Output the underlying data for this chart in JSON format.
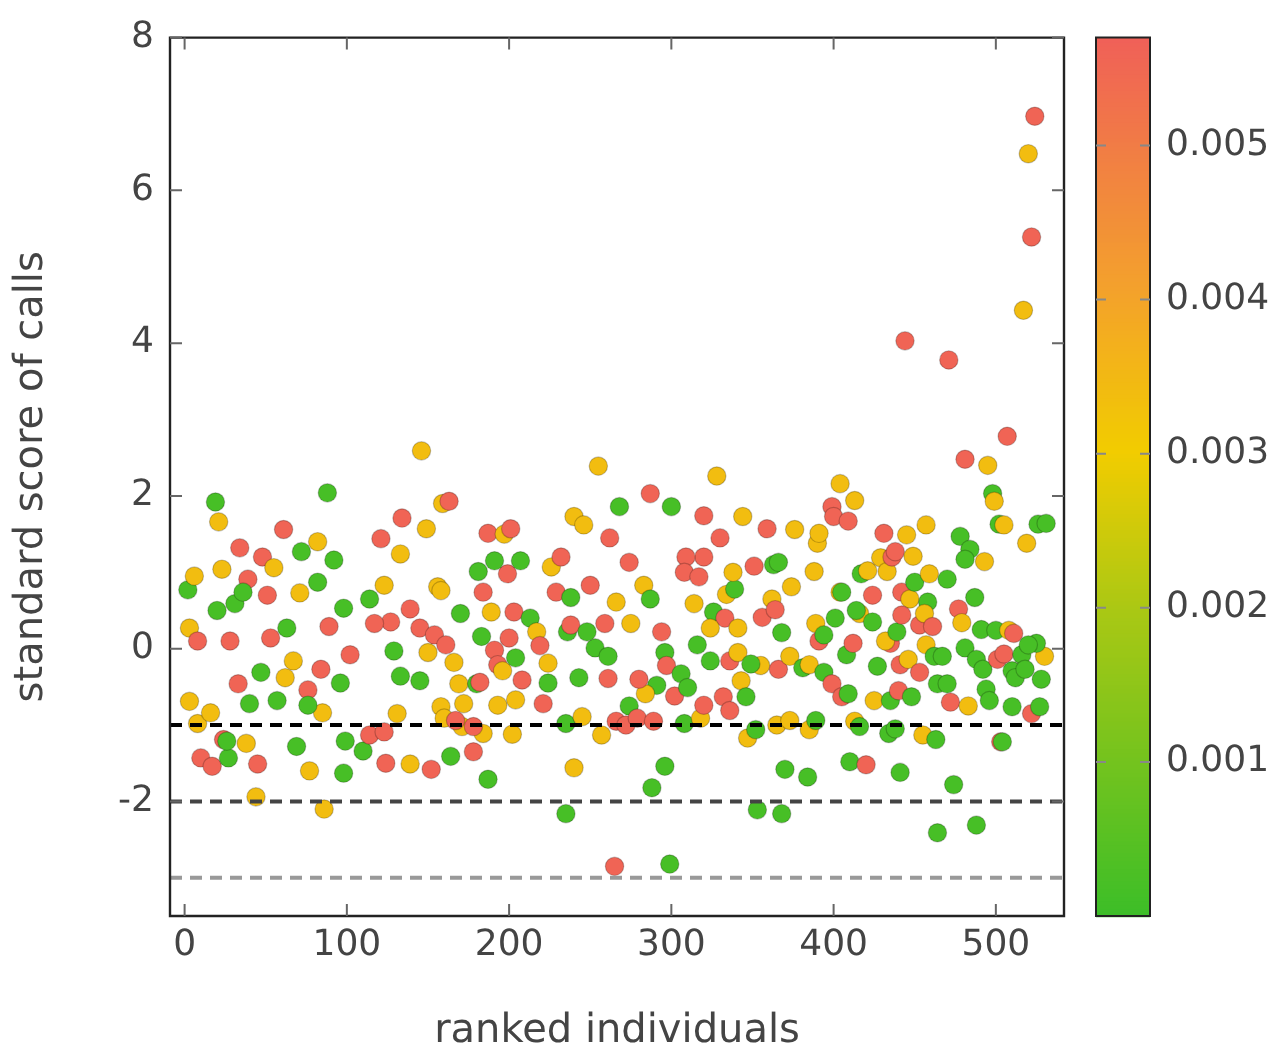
{
  "chart_data": {
    "type": "scatter",
    "xlabel": "ranked individuals",
    "ylabel": "standard score of calls",
    "xlim": [
      -9,
      542
    ],
    "ylim": [
      -3.5,
      8
    ],
    "xticks": [
      0,
      100,
      200,
      300,
      400,
      500
    ],
    "yticks": [
      -2,
      0,
      2,
      4,
      6,
      8
    ],
    "clim": [
      0,
      0.0057
    ],
    "cticks": [
      0.001,
      0.002,
      0.003,
      0.004,
      0.005
    ],
    "marker": "circle",
    "ref_lines": [
      {
        "axis": "y",
        "value": -1,
        "color": "#000000",
        "line_style": "dashed"
      },
      {
        "axis": "y",
        "value": -2,
        "color": "#444444",
        "line_style": "dashed"
      },
      {
        "axis": "y",
        "value": -3,
        "color": "#999999",
        "line_style": "dashed"
      }
    ],
    "x": [
      2,
      19,
      21,
      6,
      3,
      8,
      3,
      8,
      10,
      17,
      24,
      27,
      26,
      16,
      34,
      23,
      48,
      61,
      55,
      39,
      31,
      36,
      20,
      28,
      38,
      44,
      45,
      33,
      40,
      47,
      53,
      51,
      63,
      72,
      82,
      92,
      88,
      82,
      71,
      69,
      77,
      86,
      85,
      76,
      76,
      96,
      84,
      57,
      62,
      67,
      89,
      98,
      102,
      99,
      98,
      110,
      114,
      123,
      124,
      131,
      129,
      133,
      145,
      139,
      152,
      146,
      121,
      134,
      133,
      149,
      159,
      163,
      156,
      158,
      127,
      117,
      114,
      123,
      139,
      145,
      154,
      161,
      150,
      166,
      169,
      172,
      158,
      160,
      171,
      167,
      164,
      178,
      187,
      184,
      178,
      180,
      182,
      170,
      181,
      187,
      184,
      189,
      183,
      191,
      193,
      196,
      193,
      202,
      204,
      208,
      204,
      200,
      199,
      197,
      201,
      191,
      207,
      203,
      213,
      217,
      221,
      224,
      224,
      219,
      226,
      232,
      229,
      238,
      236,
      238,
      235,
      240,
      235,
      240,
      246,
      245,
      243,
      253,
      248,
      250,
      255,
      268,
      262,
      266,
      259,
      261,
      261,
      257,
      266,
      265,
      274,
      275,
      274,
      272,
      299,
      296,
      288,
      287,
      300,
      283,
      287,
      294,
      296,
      297,
      302,
      291,
      284,
      280,
      279,
      289,
      308,
      306,
      310,
      318,
      316,
      324,
      320,
      314,
      320,
      309,
      308,
      317,
      320,
      328,
      330,
      326,
      333,
      324,
      334,
      339,
      338,
      344,
      341,
      336,
      341,
      343,
      346,
      332,
      336,
      347,
      352,
      353,
      355,
      349,
      356,
      351,
      359,
      362,
      364,
      363,
      366,
      368,
      366,
      373,
      370,
      368,
      365,
      373,
      374,
      376,
      381,
      385,
      390,
      391,
      388,
      389,
      391,
      394,
      385,
      389,
      384,
      394,
      399,
      405,
      409,
      399,
      400,
      404,
      409,
      413,
      401,
      404,
      405,
      408,
      412,
      413,
      410,
      420,
      416,
      416,
      414,
      417,
      421,
      424,
      424,
      427,
      425,
      431,
      429,
      433,
      436,
      438,
      435,
      432,
      439,
      435,
      441,
      440,
      434,
      438,
      441,
      444,
      442,
      447,
      445,
      449,
      450,
      442,
      446,
      448,
      453,
      453,
      458,
      457,
      459,
      456,
      461,
      457,
      462,
      467,
      464,
      470,
      472,
      455,
      463,
      464,
      474,
      471,
      481,
      478,
      484,
      481,
      487,
      470,
      477,
      479,
      481,
      488,
      492,
      494,
      496,
      483,
      488,
      493,
      491,
      495,
      498,
      499,
      502,
      505,
      500,
      501,
      505,
      508,
      511,
      503,
      504,
      507,
      510,
      510,
      512,
      517,
      520,
      522,
      524,
      519,
      516,
      518,
      522,
      527,
      528,
      530,
      525,
      526,
      531,
      520
    ],
    "values": [
      0.77,
      1.92,
      1.66,
      0.95,
      0.27,
      0.1,
      -0.69,
      -0.98,
      -1.43,
      -1.54,
      -1.19,
      -1.43,
      -1.21,
      -0.84,
      1.32,
      1.04,
      1.2,
      1.56,
      1.06,
      0.91,
      0.59,
      0.74,
      0.5,
      0.1,
      -1.24,
      -1.94,
      -1.51,
      -0.46,
      -0.72,
      -0.31,
      0.14,
      0.7,
      0.27,
      1.27,
      1.4,
      1.16,
      2.04,
      0.87,
      0.73,
      -1.28,
      -1.6,
      -2.1,
      -0.84,
      -0.54,
      -0.74,
      -0.45,
      -0.27,
      -0.68,
      -0.38,
      -0.16,
      0.29,
      0.53,
      -0.08,
      -1.21,
      -1.63,
      -1.34,
      -1.13,
      -1.09,
      -1.5,
      -0.85,
      -0.03,
      -0.36,
      -0.42,
      -1.51,
      -1.58,
      2.59,
      1.44,
      1.71,
      1.24,
      1.57,
      1.9,
      1.93,
      0.81,
      0.76,
      0.35,
      0.33,
      0.65,
      0.83,
      0.52,
      0.27,
      0.18,
      0.05,
      -0.05,
      -0.18,
      -0.46,
      -0.72,
      -0.76,
      -0.91,
      -1.02,
      -0.94,
      -1.41,
      -1.35,
      -1.71,
      -1.11,
      -1.02,
      -0.46,
      -0.44,
      0.46,
      1.01,
      1.51,
      0.74,
      0.48,
      0.16,
      -0.02,
      -0.21,
      -0.29,
      -0.74,
      -1.12,
      -0.67,
      -0.41,
      -0.12,
      0.14,
      0.98,
      1.5,
      1.57,
      1.15,
      1.15,
      0.48,
      0.4,
      0.22,
      -0.72,
      -0.45,
      -0.19,
      0.04,
      1.07,
      1.2,
      0.74,
      0.67,
      0.22,
      0.31,
      -0.98,
      -1.56,
      -2.16,
      1.73,
      1.62,
      -0.89,
      -0.38,
      0.01,
      0.22,
      0.83,
      2.39,
      1.86,
      1.45,
      0.61,
      0.33,
      -0.1,
      -0.39,
      -1.13,
      -0.95,
      -2.85,
      1.13,
      0.33,
      -0.75,
      -1.0,
      -2.82,
      -1.54,
      -1.82,
      2.03,
      1.86,
      0.83,
      0.65,
      0.22,
      -0.05,
      -0.22,
      -0.62,
      -0.48,
      -0.59,
      -0.4,
      -0.91,
      -0.95,
      -0.98,
      -0.33,
      -0.51,
      -0.91,
      0.05,
      -0.16,
      -0.74,
      0.59,
      1.2,
      1.2,
      1.0,
      0.94,
      1.74,
      2.26,
      1.45,
      0.48,
      0.4,
      0.27,
      0.71,
      0.78,
      1.0,
      1.73,
      0.27,
      -0.16,
      -0.05,
      -0.42,
      -0.63,
      -0.63,
      -0.81,
      -1.17,
      -1.06,
      -2.11,
      -0.22,
      -0.2,
      0.41,
      1.08,
      1.57,
      0.65,
      0.51,
      1.1,
      1.13,
      0.21,
      -0.27,
      -0.1,
      -1.58,
      -2.16,
      -1.0,
      -0.94,
      0.81,
      1.56,
      -0.25,
      -0.21,
      1.38,
      1.51,
      1.01,
      0.33,
      0.1,
      0.18,
      -1.06,
      -0.94,
      -1.68,
      -0.31,
      -0.46,
      -0.63,
      -0.59,
      1.86,
      1.73,
      2.16,
      1.67,
      1.94,
      0.4,
      0.74,
      0.74,
      -0.08,
      0.07,
      -0.95,
      -1.48,
      -1.52,
      -1.02,
      0.46,
      0.5,
      0.98,
      1.02,
      0.7,
      0.35,
      -0.23,
      -0.68,
      1.51,
      1.19,
      1.01,
      1.2,
      1.27,
      0.07,
      0.1,
      0.22,
      -0.68,
      -0.21,
      -0.55,
      -1.11,
      -1.05,
      -1.62,
      4.03,
      0.74,
      0.65,
      1.49,
      1.21,
      0.87,
      0.44,
      -0.14,
      -0.63,
      -0.31,
      0.31,
      0.61,
      1.62,
      0.98,
      0.46,
      0.29,
      0.05,
      -0.1,
      -0.1,
      -0.46,
      -0.46,
      -0.7,
      -1.13,
      -1.19,
      -2.41,
      -1.78,
      3.78,
      2.48,
      1.47,
      1.3,
      1.17,
      0.67,
      0.91,
      0.52,
      0.34,
      0.01,
      -0.14,
      -0.27,
      -0.53,
      -0.68,
      -0.75,
      -2.31,
      1.14,
      0.25,
      2.4,
      2.03,
      1.93,
      1.63,
      1.62,
      0.24,
      -0.14,
      -0.07,
      0.24,
      0.2,
      -1.22,
      -1.22,
      2.78,
      -0.76,
      -0.29,
      -0.38,
      4.43,
      6.48,
      5.39,
      6.97,
      1.38,
      -0.08,
      -0.27,
      -0.85,
      -0.76,
      -0.4,
      -0.1,
      0.07,
      1.63,
      1.64,
      0.05
    ],
    "cvalues": [
      0.0002,
      0.0002,
      0.0034,
      0.0034,
      0.0034,
      0.0056,
      0.0034,
      0.0034,
      0.0056,
      0.0056,
      0.0056,
      0.0002,
      0.0002,
      0.0034,
      0.0056,
      0.0034,
      0.0056,
      0.0056,
      0.0034,
      0.0056,
      0.0002,
      0.0002,
      0.0002,
      0.0056,
      0.0034,
      0.0034,
      0.0056,
      0.0056,
      0.0002,
      0.0002,
      0.0056,
      0.0056,
      0.0002,
      0.0002,
      0.0034,
      0.0002,
      0.0002,
      0.0002,
      0.0034,
      0.0002,
      0.0034,
      0.0034,
      0.0034,
      0.0056,
      0.0002,
      0.0002,
      0.0056,
      0.0002,
      0.0034,
      0.0034,
      0.0056,
      0.0002,
      0.0056,
      0.0002,
      0.0002,
      0.0002,
      0.0056,
      0.0056,
      0.0056,
      0.0034,
      0.0002,
      0.0002,
      0.0002,
      0.0034,
      0.0056,
      0.0034,
      0.0056,
      0.0056,
      0.0034,
      0.0034,
      0.0034,
      0.0056,
      0.0034,
      0.0034,
      0.0056,
      0.0056,
      0.0002,
      0.0034,
      0.0056,
      0.0056,
      0.0056,
      0.0056,
      0.0034,
      0.0034,
      0.0034,
      0.0034,
      0.0034,
      0.0034,
      0.0034,
      0.0056,
      0.0002,
      0.0056,
      0.0002,
      0.0034,
      0.0056,
      0.0002,
      0.0056,
      0.0002,
      0.0002,
      0.0056,
      0.0056,
      0.0034,
      0.0002,
      0.0056,
      0.0056,
      0.0034,
      0.0034,
      0.0034,
      0.0034,
      0.0056,
      0.0002,
      0.0056,
      0.0056,
      0.0034,
      0.0056,
      0.0002,
      0.0002,
      0.0056,
      0.0002,
      0.0034,
      0.0056,
      0.0002,
      0.0034,
      0.0056,
      0.0034,
      0.0056,
      0.0056,
      0.0002,
      0.0002,
      0.0056,
      0.0002,
      0.0034,
      0.0002,
      0.0034,
      0.0034,
      0.0034,
      0.0002,
      0.0002,
      0.0002,
      0.0056,
      0.0034,
      0.0002,
      0.0056,
      0.0034,
      0.0056,
      0.0002,
      0.0056,
      0.0034,
      0.0056,
      0.0056,
      0.0056,
      0.0034,
      0.0002,
      0.0056,
      0.0002,
      0.0002,
      0.0002,
      0.0056,
      0.0002,
      0.0034,
      0.0002,
      0.0056,
      0.0002,
      0.0056,
      0.0056,
      0.0002,
      0.0034,
      0.0056,
      0.0056,
      0.0056,
      0.0002,
      0.0002,
      0.0002,
      0.0034,
      0.0002,
      0.0002,
      0.0056,
      0.0034,
      0.0056,
      0.0056,
      0.0056,
      0.0056,
      0.0056,
      0.0034,
      0.0056,
      0.0002,
      0.0056,
      0.0034,
      0.0034,
      0.0002,
      0.0034,
      0.0034,
      0.0034,
      0.0056,
      0.0034,
      0.0034,
      0.0002,
      0.0056,
      0.0056,
      0.0034,
      0.0002,
      0.0002,
      0.0034,
      0.0002,
      0.0056,
      0.0056,
      0.0056,
      0.0034,
      0.0056,
      0.0002,
      0.0002,
      0.0002,
      0.0056,
      0.0034,
      0.0002,
      0.0002,
      0.0034,
      0.0034,
      0.0034,
      0.0034,
      0.0002,
      0.0034,
      0.0034,
      0.0034,
      0.0034,
      0.0034,
      0.0056,
      0.0002,
      0.0034,
      0.0002,
      0.0002,
      0.0002,
      0.0056,
      0.0056,
      0.0002,
      0.0056,
      0.0056,
      0.0034,
      0.0056,
      0.0034,
      0.0002,
      0.0034,
      0.0002,
      0.0002,
      0.0056,
      0.0034,
      0.0002,
      0.0056,
      0.0002,
      0.0034,
      0.0002,
      0.0002,
      0.0034,
      0.0056,
      0.0002,
      0.0002,
      0.0034,
      0.0056,
      0.0034,
      0.0034,
      0.0056,
      0.0056,
      0.0056,
      0.0034,
      0.0002,
      0.0002,
      0.0056,
      0.0056,
      0.0002,
      0.0002,
      0.0002,
      0.0056,
      0.0056,
      0.0034,
      0.0034,
      0.0034,
      0.0002,
      0.0056,
      0.0034,
      0.0002,
      0.0056,
      0.0056,
      0.0002,
      0.0034,
      0.0034,
      0.0034,
      0.0056,
      0.0034,
      0.0002,
      0.0002,
      0.0002,
      0.0002,
      0.0056,
      0.0034,
      0.0002,
      0.0002,
      0.0002,
      0.0056,
      0.0056,
      0.0002,
      0.0002,
      0.0002,
      0.0002,
      0.0002,
      0.0056,
      0.0034,
      0.0002,
      0.0002,
      0.0002,
      0.0002,
      0.0002,
      0.0034,
      0.0002,
      0.0034,
      0.0002,
      0.0034,
      0.0002,
      0.0034,
      0.0002,
      0.0034,
      0.0002,
      0.0056,
      0.0056,
      0.0034,
      0.0056,
      0.0056,
      0.0002,
      0.0056,
      0.0002,
      0.0002,
      0.0002,
      0.0034,
      0.0034,
      0.0056,
      0.0056,
      0.0034,
      0.0002,
      0.0002,
      0.0056,
      0.0002,
      0.0002,
      0.0034,
      0.0002,
      0.0002,
      0.0002,
      0.0002
    ]
  }
}
